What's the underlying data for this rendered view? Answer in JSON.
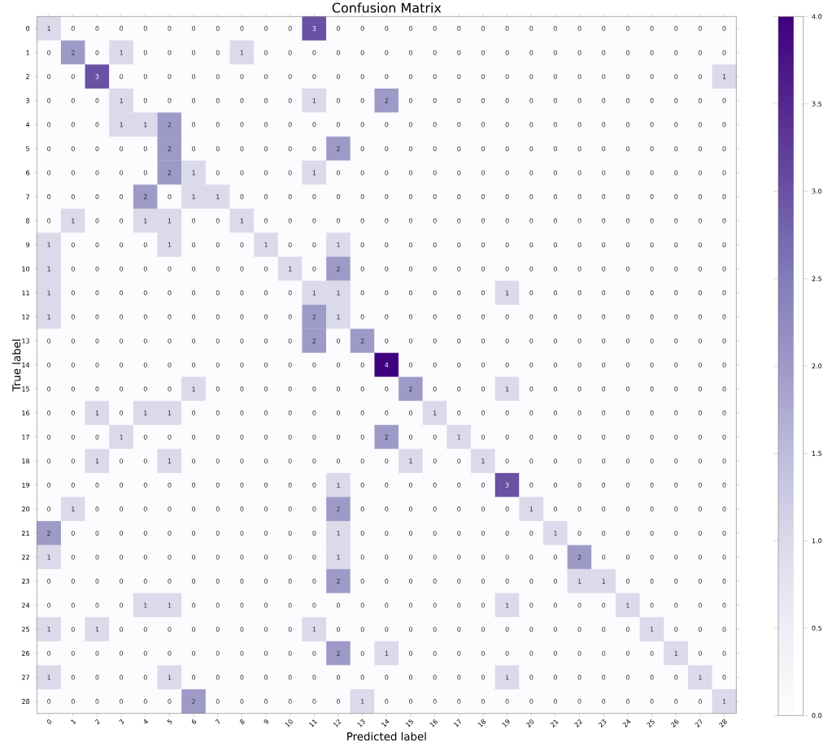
{
  "chart_data": {
    "type": "heatmap",
    "title": "Confusion Matrix",
    "xlabel": "Predicted label",
    "ylabel": "True label",
    "categories": [
      "0",
      "1",
      "2",
      "3",
      "4",
      "5",
      "6",
      "7",
      "8",
      "9",
      "10",
      "11",
      "12",
      "13",
      "14",
      "15",
      "16",
      "17",
      "18",
      "19",
      "20",
      "21",
      "22",
      "23",
      "24",
      "25",
      "26",
      "27",
      "28"
    ],
    "y_categories": [
      "0",
      "1",
      "2",
      "3",
      "4",
      "5",
      "6",
      "7",
      "8",
      "9",
      "10",
      "11",
      "12",
      "13",
      "14",
      "15",
      "16",
      "17",
      "18",
      "19",
      "20",
      "21",
      "22",
      "23",
      "24",
      "25",
      "26",
      "27",
      "28"
    ],
    "cells": [
      [
        1,
        0,
        0,
        0,
        0,
        0,
        0,
        0,
        0,
        0,
        0,
        3,
        0,
        0,
        0,
        0,
        0,
        0,
        0,
        0,
        0,
        0,
        0,
        0,
        0,
        0,
        0,
        0,
        0
      ],
      [
        0,
        2,
        0,
        1,
        0,
        0,
        0,
        0,
        1,
        0,
        0,
        0,
        0,
        0,
        0,
        0,
        0,
        0,
        0,
        0,
        0,
        0,
        0,
        0,
        0,
        0,
        0,
        0,
        0
      ],
      [
        0,
        0,
        3,
        0,
        0,
        0,
        0,
        0,
        0,
        0,
        0,
        0,
        0,
        0,
        0,
        0,
        0,
        0,
        0,
        0,
        0,
        0,
        0,
        0,
        0,
        0,
        0,
        0,
        1
      ],
      [
        0,
        0,
        0,
        1,
        0,
        0,
        0,
        0,
        0,
        0,
        0,
        1,
        0,
        0,
        2,
        0,
        0,
        0,
        0,
        0,
        0,
        0,
        0,
        0,
        0,
        0,
        0,
        0,
        0
      ],
      [
        0,
        0,
        0,
        1,
        1,
        2,
        0,
        0,
        0,
        0,
        0,
        0,
        0,
        0,
        0,
        0,
        0,
        0,
        0,
        0,
        0,
        0,
        0,
        0,
        0,
        0,
        0,
        0,
        0
      ],
      [
        0,
        0,
        0,
        0,
        0,
        2,
        0,
        0,
        0,
        0,
        0,
        0,
        2,
        0,
        0,
        0,
        0,
        0,
        0,
        0,
        0,
        0,
        0,
        0,
        0,
        0,
        0,
        0,
        0
      ],
      [
        0,
        0,
        0,
        0,
        0,
        2,
        1,
        0,
        0,
        0,
        0,
        1,
        0,
        0,
        0,
        0,
        0,
        0,
        0,
        0,
        0,
        0,
        0,
        0,
        0,
        0,
        0,
        0,
        0
      ],
      [
        0,
        0,
        0,
        0,
        2,
        0,
        1,
        1,
        0,
        0,
        0,
        0,
        0,
        0,
        0,
        0,
        0,
        0,
        0,
        0,
        0,
        0,
        0,
        0,
        0,
        0,
        0,
        0,
        0
      ],
      [
        0,
        1,
        0,
        0,
        1,
        1,
        0,
        0,
        1,
        0,
        0,
        0,
        0,
        0,
        0,
        0,
        0,
        0,
        0,
        0,
        0,
        0,
        0,
        0,
        0,
        0,
        0,
        0,
        0
      ],
      [
        1,
        0,
        0,
        0,
        0,
        1,
        0,
        0,
        0,
        1,
        0,
        0,
        1,
        0,
        0,
        0,
        0,
        0,
        0,
        0,
        0,
        0,
        0,
        0,
        0,
        0,
        0,
        0,
        0
      ],
      [
        1,
        0,
        0,
        0,
        0,
        0,
        0,
        0,
        0,
        0,
        1,
        0,
        2,
        0,
        0,
        0,
        0,
        0,
        0,
        0,
        0,
        0,
        0,
        0,
        0,
        0,
        0,
        0,
        0
      ],
      [
        1,
        0,
        0,
        0,
        0,
        0,
        0,
        0,
        0,
        0,
        0,
        1,
        1,
        0,
        0,
        0,
        0,
        0,
        0,
        1,
        0,
        0,
        0,
        0,
        0,
        0,
        0,
        0,
        0
      ],
      [
        1,
        0,
        0,
        0,
        0,
        0,
        0,
        0,
        0,
        0,
        0,
        2,
        1,
        0,
        0,
        0,
        0,
        0,
        0,
        0,
        0,
        0,
        0,
        0,
        0,
        0,
        0,
        0,
        0
      ],
      [
        0,
        0,
        0,
        0,
        0,
        0,
        0,
        0,
        0,
        0,
        0,
        2,
        0,
        2,
        0,
        0,
        0,
        0,
        0,
        0,
        0,
        0,
        0,
        0,
        0,
        0,
        0,
        0,
        0
      ],
      [
        0,
        0,
        0,
        0,
        0,
        0,
        0,
        0,
        0,
        0,
        0,
        0,
        0,
        0,
        4,
        0,
        0,
        0,
        0,
        0,
        0,
        0,
        0,
        0,
        0,
        0,
        0,
        0,
        0
      ],
      [
        0,
        0,
        0,
        0,
        0,
        0,
        1,
        0,
        0,
        0,
        0,
        0,
        0,
        0,
        0,
        2,
        0,
        0,
        0,
        1,
        0,
        0,
        0,
        0,
        0,
        0,
        0,
        0,
        0
      ],
      [
        0,
        0,
        1,
        0,
        1,
        1,
        0,
        0,
        0,
        0,
        0,
        0,
        0,
        0,
        0,
        0,
        1,
        0,
        0,
        0,
        0,
        0,
        0,
        0,
        0,
        0,
        0,
        0,
        0
      ],
      [
        0,
        0,
        0,
        1,
        0,
        0,
        0,
        0,
        0,
        0,
        0,
        0,
        0,
        0,
        2,
        0,
        0,
        1,
        0,
        0,
        0,
        0,
        0,
        0,
        0,
        0,
        0,
        0,
        0
      ],
      [
        0,
        0,
        1,
        0,
        0,
        1,
        0,
        0,
        0,
        0,
        0,
        0,
        0,
        0,
        0,
        1,
        0,
        0,
        1,
        0,
        0,
        0,
        0,
        0,
        0,
        0,
        0,
        0,
        0
      ],
      [
        0,
        0,
        0,
        0,
        0,
        0,
        0,
        0,
        0,
        0,
        0,
        0,
        1,
        0,
        0,
        0,
        0,
        0,
        0,
        3,
        0,
        0,
        0,
        0,
        0,
        0,
        0,
        0,
        0
      ],
      [
        0,
        1,
        0,
        0,
        0,
        0,
        0,
        0,
        0,
        0,
        0,
        0,
        2,
        0,
        0,
        0,
        0,
        0,
        0,
        0,
        1,
        0,
        0,
        0,
        0,
        0,
        0,
        0,
        0
      ],
      [
        2,
        0,
        0,
        0,
        0,
        0,
        0,
        0,
        0,
        0,
        0,
        0,
        1,
        0,
        0,
        0,
        0,
        0,
        0,
        0,
        0,
        1,
        0,
        0,
        0,
        0,
        0,
        0,
        0
      ],
      [
        1,
        0,
        0,
        0,
        0,
        0,
        0,
        0,
        0,
        0,
        0,
        0,
        1,
        0,
        0,
        0,
        0,
        0,
        0,
        0,
        0,
        0,
        2,
        0,
        0,
        0,
        0,
        0,
        0
      ],
      [
        0,
        0,
        0,
        0,
        0,
        0,
        0,
        0,
        0,
        0,
        0,
        0,
        2,
        0,
        0,
        0,
        0,
        0,
        0,
        0,
        0,
        0,
        1,
        1,
        0,
        0,
        0,
        0,
        0
      ],
      [
        0,
        0,
        0,
        0,
        1,
        1,
        0,
        0,
        0,
        0,
        0,
        0,
        0,
        0,
        0,
        0,
        0,
        0,
        0,
        1,
        0,
        0,
        0,
        0,
        1,
        0,
        0,
        0,
        0
      ],
      [
        1,
        0,
        1,
        0,
        0,
        0,
        0,
        0,
        0,
        0,
        0,
        1,
        0,
        0,
        0,
        0,
        0,
        0,
        0,
        0,
        0,
        0,
        0,
        0,
        0,
        1,
        0,
        0,
        0
      ],
      [
        0,
        0,
        0,
        0,
        0,
        0,
        0,
        0,
        0,
        0,
        0,
        0,
        2,
        0,
        1,
        0,
        0,
        0,
        0,
        0,
        0,
        0,
        0,
        0,
        0,
        0,
        1,
        0,
        0
      ],
      [
        1,
        0,
        0,
        0,
        0,
        1,
        0,
        0,
        0,
        0,
        0,
        0,
        0,
        0,
        0,
        0,
        0,
        0,
        0,
        1,
        0,
        0,
        0,
        0,
        0,
        0,
        0,
        1,
        0
      ],
      [
        0,
        0,
        0,
        0,
        0,
        0,
        2,
        0,
        0,
        0,
        0,
        0,
        0,
        1,
        0,
        0,
        0,
        0,
        0,
        0,
        0,
        0,
        0,
        0,
        0,
        0,
        0,
        0,
        1
      ]
    ],
    "clim": [
      0,
      4
    ],
    "cticks": [
      {
        "value": 0,
        "label": "0.0"
      },
      {
        "value": 0.5,
        "label": "0.5"
      },
      {
        "value": 1,
        "label": "1.0"
      },
      {
        "value": 1.5,
        "label": "1.5"
      },
      {
        "value": 2,
        "label": "2.0"
      },
      {
        "value": 2.5,
        "label": "2.5"
      },
      {
        "value": 3,
        "label": "3.0"
      },
      {
        "value": 3.5,
        "label": "3.5"
      },
      {
        "value": 4,
        "label": "4.0"
      }
    ],
    "data_labels": true
  }
}
